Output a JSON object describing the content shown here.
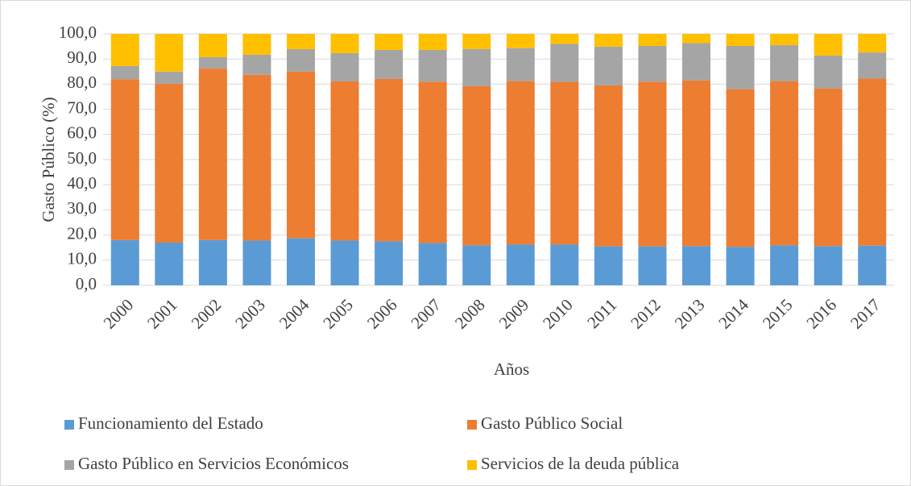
{
  "chart_data": {
    "type": "stacked-bar",
    "x_label": "Años",
    "y_label": "Gasto Público (%)",
    "categories": [
      "2000",
      "2001",
      "2002",
      "2003",
      "2004",
      "2005",
      "2006",
      "2007",
      "2008",
      "2009",
      "2010",
      "2011",
      "2012",
      "2013",
      "2014",
      "2015",
      "2016",
      "2017"
    ],
    "series": [
      {
        "name": "Funcionamiento del Estado",
        "color": "#5b9bd5",
        "values": [
          18.0,
          17.0,
          18.0,
          17.8,
          18.7,
          17.8,
          17.5,
          16.8,
          15.9,
          16.2,
          16.2,
          15.5,
          15.5,
          15.6,
          15.3,
          15.9,
          15.6,
          15.8
        ]
      },
      {
        "name": "Gasto Público Social",
        "color": "#ed7d31",
        "values": [
          64.0,
          63.1,
          68.2,
          65.9,
          66.3,
          63.3,
          64.6,
          64.2,
          63.3,
          65.0,
          64.7,
          64.0,
          65.5,
          65.9,
          62.7,
          65.3,
          62.7,
          66.4
        ]
      },
      {
        "name": "Gasto Público en Servicios Económicos",
        "color": "#a5a5a5",
        "values": [
          5.2,
          4.9,
          4.5,
          8.0,
          8.9,
          11.2,
          11.5,
          12.6,
          14.8,
          13.1,
          15.1,
          15.4,
          14.2,
          14.8,
          17.2,
          14.3,
          13.1,
          10.4
        ]
      },
      {
        "name": "Servicios de la deuda pública",
        "color": "#ffc000",
        "values": [
          12.8,
          15.0,
          9.3,
          8.3,
          6.1,
          7.7,
          6.4,
          6.4,
          6.0,
          5.7,
          4.0,
          5.1,
          4.8,
          3.7,
          4.8,
          4.5,
          8.6,
          7.4
        ]
      }
    ],
    "ylim": [
      0,
      100
    ],
    "yticks": [
      {
        "value": 0,
        "label": "0,0"
      },
      {
        "value": 10,
        "label": "10,0"
      },
      {
        "value": 20,
        "label": "20,0"
      },
      {
        "value": 30,
        "label": "30,0"
      },
      {
        "value": 40,
        "label": "40,0"
      },
      {
        "value": 50,
        "label": "50,0"
      },
      {
        "value": 60,
        "label": "60,0"
      },
      {
        "value": 70,
        "label": "70,0"
      },
      {
        "value": 80,
        "label": "80,0"
      },
      {
        "value": 90,
        "label": "90,0"
      },
      {
        "value": 100,
        "label": "100,0"
      }
    ],
    "grid": true,
    "legend": "bottom"
  }
}
